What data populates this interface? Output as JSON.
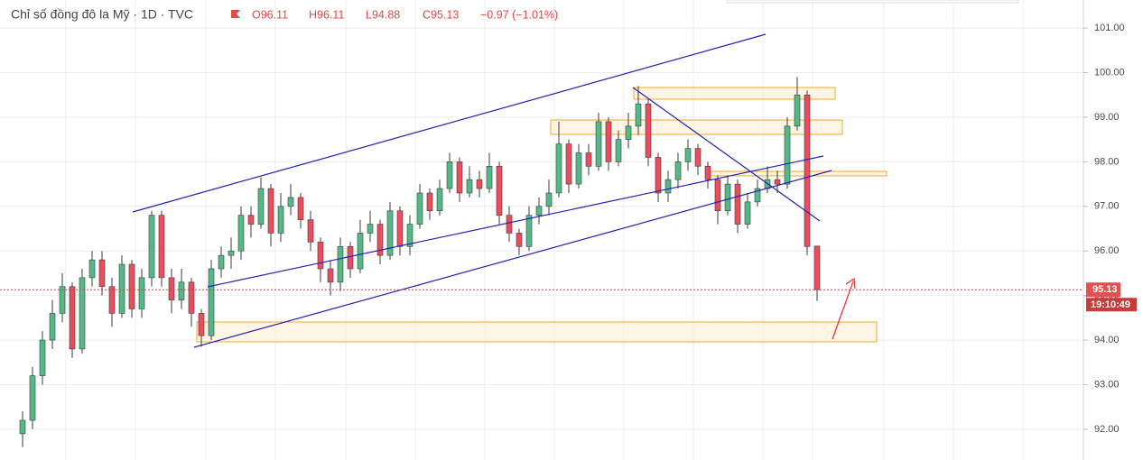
{
  "header": {
    "title": "Chỉ số đồng đô la Mỹ · 1D · TVC",
    "ohlc": [
      "O96.11",
      "H96.11",
      "L94.88",
      "C95.13",
      "−0.97 (−1.01%)"
    ]
  },
  "chart_data": {
    "type": "candlestick",
    "up_color": "#53b987",
    "down_color": "#eb4d5c",
    "wick_color": "#3b3b3b",
    "ylim": [
      91.31,
      101.63
    ],
    "yticks": [
      {
        "value": 92,
        "label": "92.00"
      },
      {
        "value": 93,
        "label": "93.00"
      },
      {
        "value": 94,
        "label": "94.00"
      },
      {
        "value": 95,
        "label": "95.00"
      },
      {
        "value": 96,
        "label": "96.00"
      },
      {
        "value": 97,
        "label": "97.00"
      },
      {
        "value": 98,
        "label": "98.00"
      },
      {
        "value": 99,
        "label": "99.00"
      },
      {
        "value": 100,
        "label": "100.00"
      },
      {
        "value": 101,
        "label": "101.00"
      }
    ],
    "grid": true,
    "last_price": {
      "value": 95.13,
      "label": "95.13"
    },
    "countdown": "19:10:49",
    "open": [
      91.9,
      92.2,
      93.2,
      94.0,
      94.6,
      95.2,
      93.8,
      95.4,
      95.8,
      95.2,
      94.6,
      95.7,
      94.7,
      95.4,
      96.8,
      95.4,
      94.9,
      95.3,
      94.6,
      94.1,
      95.6,
      95.9,
      96.0,
      96.8,
      96.6,
      97.4,
      96.4,
      97.0,
      97.2,
      96.7,
      96.2,
      95.6,
      95.3,
      96.1,
      95.6,
      96.4,
      96.6,
      95.9,
      96.9,
      96.1,
      96.6,
      97.3,
      96.9,
      97.4,
      98.0,
      97.3,
      97.6,
      97.4,
      97.9,
      96.8,
      96.4,
      96.1,
      96.8,
      97.0,
      97.3,
      98.4,
      97.5,
      98.2,
      97.9,
      98.9,
      98.0,
      98.5,
      98.8,
      99.3,
      98.1,
      97.3,
      97.6,
      98.0,
      98.3,
      97.9,
      97.6,
      96.9,
      97.5,
      96.6,
      97.1,
      97.4,
      97.6,
      97.5,
      98.8,
      99.5,
      96.11
    ],
    "high": [
      92.4,
      93.4,
      94.2,
      94.9,
      95.5,
      95.3,
      95.6,
      96.0,
      96.0,
      95.4,
      95.9,
      95.8,
      95.6,
      96.9,
      96.9,
      95.6,
      95.6,
      95.4,
      94.7,
      95.8,
      96.1,
      96.3,
      97.0,
      97.0,
      97.65,
      97.5,
      97.3,
      97.5,
      97.3,
      96.9,
      96.3,
      95.8,
      96.3,
      96.2,
      96.7,
      96.9,
      96.7,
      97.1,
      97.0,
      96.8,
      97.5,
      97.4,
      97.6,
      98.2,
      98.1,
      97.9,
      97.8,
      98.2,
      98.0,
      97.0,
      96.5,
      97.0,
      97.2,
      97.6,
      98.9,
      98.5,
      98.4,
      98.4,
      99.1,
      99.0,
      98.7,
      99.1,
      99.7,
      99.4,
      98.2,
      97.8,
      98.2,
      98.5,
      98.4,
      98.0,
      97.7,
      97.7,
      97.6,
      97.3,
      97.6,
      97.9,
      97.8,
      99.0,
      99.9,
      99.6,
      96.11
    ],
    "low": [
      91.6,
      92.0,
      93.0,
      93.8,
      94.4,
      93.6,
      93.7,
      95.2,
      95.0,
      94.3,
      94.5,
      94.5,
      94.5,
      95.2,
      95.2,
      94.6,
      94.7,
      94.3,
      93.85,
      94.0,
      95.4,
      95.6,
      95.8,
      96.3,
      96.5,
      96.1,
      96.2,
      96.8,
      96.5,
      96.0,
      95.3,
      95.0,
      95.1,
      95.4,
      95.5,
      96.2,
      95.7,
      95.8,
      95.9,
      95.9,
      96.5,
      96.7,
      96.8,
      97.3,
      97.1,
      97.2,
      97.2,
      97.3,
      96.6,
      96.2,
      95.9,
      96.0,
      96.6,
      96.8,
      97.2,
      97.3,
      97.4,
      97.7,
      97.8,
      97.8,
      97.9,
      98.3,
      98.6,
      97.9,
      97.1,
      97.1,
      97.4,
      97.8,
      97.7,
      97.4,
      96.6,
      96.8,
      96.4,
      96.5,
      97.0,
      97.3,
      97.3,
      97.4,
      98.7,
      95.9,
      94.88
    ],
    "close": [
      92.2,
      93.2,
      94.0,
      94.6,
      95.2,
      93.8,
      95.4,
      95.8,
      95.2,
      94.6,
      95.7,
      94.7,
      95.4,
      96.8,
      95.4,
      94.9,
      95.3,
      94.6,
      94.1,
      95.6,
      95.9,
      96.0,
      96.8,
      96.6,
      97.4,
      96.4,
      97.0,
      97.2,
      96.7,
      96.2,
      95.6,
      95.3,
      96.1,
      95.6,
      96.4,
      96.6,
      95.9,
      96.9,
      96.1,
      96.6,
      97.3,
      96.9,
      97.4,
      98.0,
      97.3,
      97.6,
      97.4,
      97.9,
      96.8,
      96.4,
      96.1,
      96.8,
      97.0,
      97.3,
      98.4,
      97.5,
      98.2,
      97.9,
      98.9,
      98.0,
      98.5,
      98.8,
      99.3,
      98.1,
      97.3,
      97.6,
      98.0,
      98.3,
      97.9,
      97.6,
      96.9,
      97.5,
      96.6,
      97.1,
      97.4,
      97.6,
      97.5,
      98.8,
      99.5,
      96.1,
      95.13
    ]
  }
}
